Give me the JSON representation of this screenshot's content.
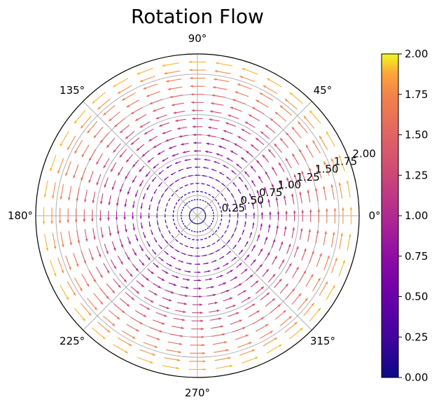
{
  "chart_data": {
    "type": "quiver-polar",
    "title": "Rotation Flow",
    "theta_ticks": [
      "0°",
      "45°",
      "90°",
      "135°",
      "180°",
      "225°",
      "270°",
      "315°"
    ],
    "theta_tick_values": [
      0,
      45,
      90,
      135,
      180,
      225,
      270,
      315
    ],
    "r_ticks": [
      "0.25",
      "0.50",
      "0.75",
      "1.00",
      "1.25",
      "1.50",
      "1.75",
      "2.00"
    ],
    "r_tick_values": [
      0.25,
      0.5,
      0.75,
      1.0,
      1.25,
      1.5,
      1.75,
      2.0
    ],
    "r_label_angle_deg": 22.5,
    "rlim": [
      0,
      2.0
    ],
    "grid": true,
    "field": {
      "description_of_vectors": "tangential (counter-clockwise) rotation; magnitude equals radius",
      "r_values": [
        0.1,
        0.2,
        0.3,
        0.4,
        0.5,
        0.6,
        0.7,
        0.8,
        0.9,
        1.0,
        1.1,
        1.2,
        1.3,
        1.4,
        1.5,
        1.6,
        1.7,
        1.8,
        1.9,
        2.0
      ],
      "theta_count": 36,
      "magnitude_rule": "magnitude = r"
    },
    "colorbar": {
      "colormap": "plasma",
      "ticks": [
        "0.00",
        "0.25",
        "0.50",
        "0.75",
        "1.00",
        "1.25",
        "1.50",
        "1.75",
        "2.00"
      ],
      "tick_values": [
        0,
        0.25,
        0.5,
        0.75,
        1.0,
        1.25,
        1.5,
        1.75,
        2.0
      ],
      "range": [
        0,
        2.0
      ]
    }
  }
}
